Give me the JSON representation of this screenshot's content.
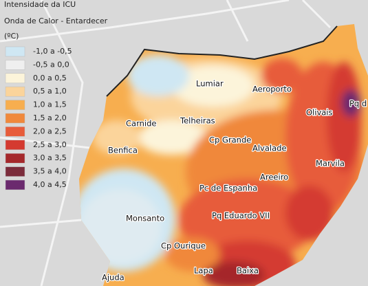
{
  "legend": {
    "title": "Intensidade da ICU",
    "subtitle": "Onda de Calor - Entardecer",
    "unit": "(ºC)",
    "items": [
      {
        "label": "-1,0 a -0,5",
        "color": "#cfe7f3"
      },
      {
        "label": "-0,5 a 0,0",
        "color": "#efefef"
      },
      {
        "label": "0,0 a 0,5",
        "color": "#fcf4da"
      },
      {
        "label": "0,5 a 1,0",
        "color": "#fbd49b"
      },
      {
        "label": "1,0 a 1,5",
        "color": "#f7ae4f"
      },
      {
        "label": "1,5 a 2,0",
        "color": "#f0883b"
      },
      {
        "label": "2,0 a 2,5",
        "color": "#e75c3a"
      },
      {
        "label": "2,5 a 3,0",
        "color": "#d43a30"
      },
      {
        "label": "3,0 a 3,5",
        "color": "#a5282b"
      },
      {
        "label": "3,5 a 4,0",
        "color": "#7b2c3b"
      },
      {
        "label": "4,0 a 4,5",
        "color": "#6b2a6e"
      }
    ]
  },
  "places": [
    "Lumiar",
    "Aeroporto",
    "Olivais",
    "Pq d",
    "Carnide",
    "Telheiras",
    "Cp Grande",
    "Alvalade",
    "Benfica",
    "Marvila",
    "Areeiro",
    "Pc de Espanha",
    "Monsanto",
    "Pq Eduardo VII",
    "Cp Ourique",
    "Lapa",
    "Baixa",
    "Ajuda"
  ]
}
